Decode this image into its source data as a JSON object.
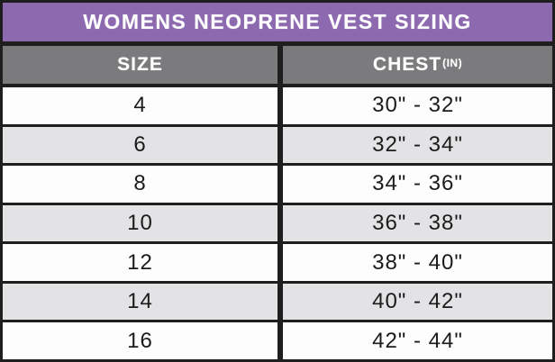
{
  "chart_data": {
    "type": "table",
    "title": "WOMENS NEOPRENE VEST SIZING",
    "columns": [
      "SIZE",
      "CHEST(IN)"
    ],
    "rows": [
      [
        "4",
        "30\" - 32\""
      ],
      [
        "6",
        "32\" - 34\""
      ],
      [
        "8",
        "34\" - 36\""
      ],
      [
        "10",
        "36\" - 38\""
      ],
      [
        "12",
        "38\" - 40\""
      ],
      [
        "14",
        "40\" - 42\""
      ],
      [
        "16",
        "42\" - 44\""
      ]
    ]
  },
  "header": {
    "size_label": "SIZE",
    "chest_label": "CHEST",
    "chest_superscript": "(IN)"
  },
  "colors": {
    "title_bg": "#8d69b0",
    "title_text": "#ffffff",
    "header_bg": "#7b7a7c",
    "header_text": "#ffffff",
    "row_bg": "#fdfdfd",
    "row_alt_bg": "#e3e3e6",
    "border": "#1e1e1e",
    "cell_text": "#1b1b1b"
  }
}
